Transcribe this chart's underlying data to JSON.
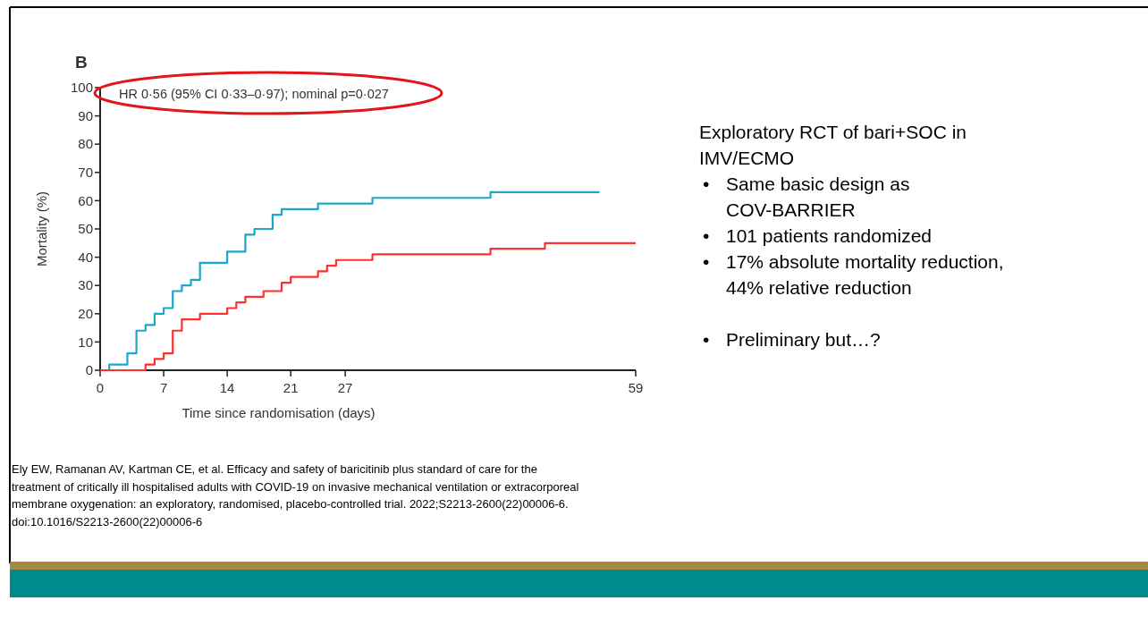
{
  "chart_data": {
    "type": "step",
    "title": "B",
    "xlabel": "Time since randomisation (days)",
    "ylabel": "Mortality (%)",
    "xlim": [
      0,
      59
    ],
    "xticks": [
      0,
      7,
      14,
      21,
      27,
      59
    ],
    "ylim": [
      0,
      100
    ],
    "yticks": [
      0,
      10,
      20,
      30,
      40,
      50,
      60,
      70,
      80,
      90,
      100
    ],
    "grid": false,
    "series": [
      {
        "color": "#1aa7c9",
        "x": [
          0,
          1,
          3,
          4,
          5,
          6,
          7,
          8,
          9,
          10,
          11,
          14,
          16,
          17,
          19,
          20,
          24,
          30,
          43,
          55
        ],
        "values": [
          0,
          2,
          6,
          14,
          16,
          20,
          22,
          28,
          30,
          32,
          38,
          42,
          48,
          50,
          55,
          57,
          59,
          61,
          63,
          63
        ]
      },
      {
        "color": "#ff3030",
        "x": [
          0,
          5,
          6,
          7,
          8,
          9,
          11,
          14,
          15,
          16,
          18,
          20,
          21,
          24,
          25,
          26,
          30,
          43,
          49,
          59
        ],
        "values": [
          0,
          2,
          4,
          6,
          14,
          18,
          20,
          22,
          24,
          26,
          28,
          31,
          33,
          35,
          37,
          39,
          41,
          43,
          45,
          45
        ]
      }
    ],
    "annotations": [
      "HR 0·56 (95% CI 0·33–0·97); nominal p=0·027",
      "Exploratory RCT of bari+SOC in IMV/ECMO",
      "• Same basic design as COV-BARRIER",
      "• 101 patients randomized",
      "• 17% absolute mortality reduction, 44% relative reduction",
      "• Preliminary but…?",
      "Ely EW, Ramanan AV, Kartman CE, et al. Efficacy and safety of baricitinib plus standard of care for the treatment of critically ill hospitalised adults with COVID-19 on invasive mechanical ventilation or extracorporeal membrane oxygenation: an exploratory, randomised, placebo-controlled trial. 2022;S2213-2600(22)00006-6. doi:10.1016/S2213-2600(22)00006-6"
    ]
  }
}
